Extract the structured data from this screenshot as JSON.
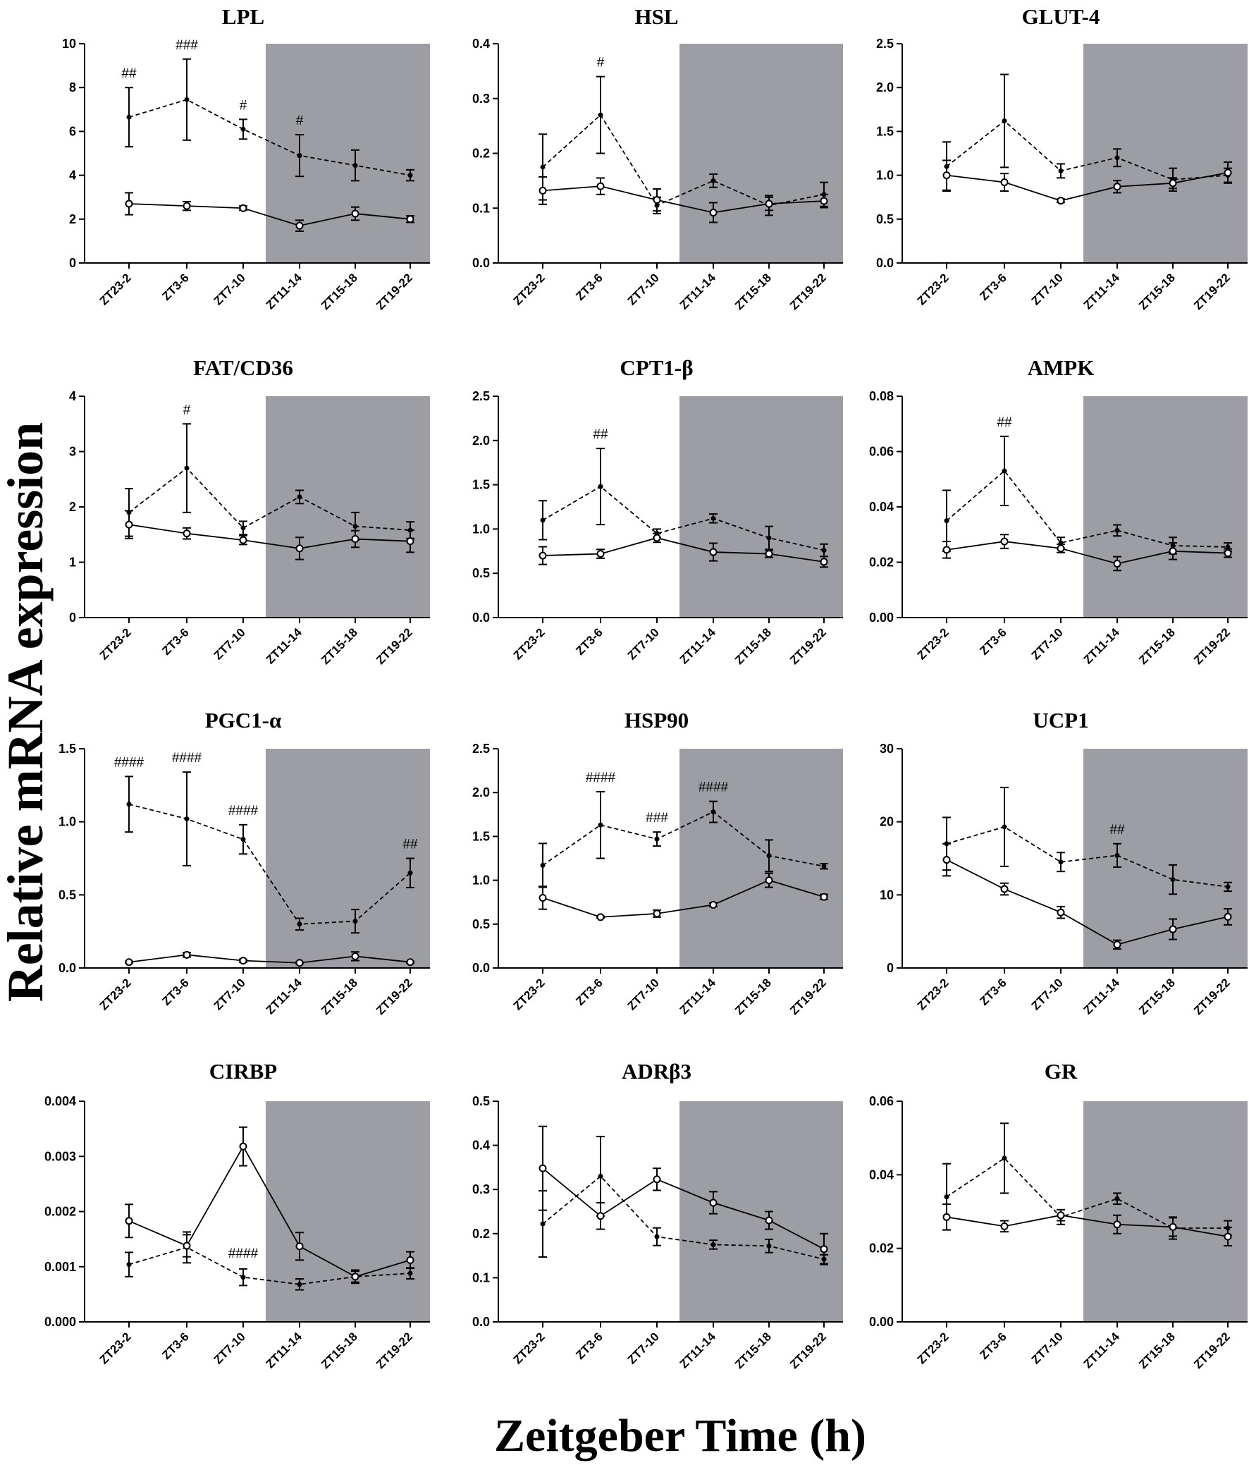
{
  "figure": {
    "ylabel": "Relative mRNA expression",
    "xlabel": "Zeitgeber Time (h)"
  },
  "chart_data": [
    {
      "type": "line",
      "title": "LPL",
      "categories": [
        "ZT23-2",
        "ZT3-6",
        "ZT7-10",
        "ZT11-14",
        "ZT15-18",
        "ZT19-22"
      ],
      "ylim": [
        0,
        10
      ],
      "yticks": [
        "0",
        "2",
        "4",
        "6",
        "8",
        "10"
      ],
      "dark_phase_start": "ZT11-14",
      "series": [
        {
          "name": "dashed (filled markers)",
          "values": [
            6.65,
            7.45,
            6.1,
            4.9,
            4.45,
            4.0
          ],
          "errors": [
            1.35,
            1.85,
            0.45,
            0.95,
            0.7,
            0.25
          ]
        },
        {
          "name": "solid (open markers)",
          "values": [
            2.7,
            2.6,
            2.5,
            1.7,
            2.25,
            2.0
          ],
          "errors": [
            0.5,
            0.2,
            0.1,
            0.25,
            0.3,
            0.15
          ]
        }
      ],
      "annotations": [
        {
          "x": "ZT23-2",
          "text": "##"
        },
        {
          "x": "ZT3-6",
          "text": "###"
        },
        {
          "x": "ZT7-10",
          "text": "#"
        },
        {
          "x": "ZT11-14",
          "text": "#"
        }
      ]
    },
    {
      "type": "line",
      "title": "HSL",
      "categories": [
        "ZT23-2",
        "ZT3-6",
        "ZT7-10",
        "ZT11-14",
        "ZT15-18",
        "ZT19-22"
      ],
      "ylim": [
        0,
        0.4
      ],
      "yticks": [
        "0.0",
        "0.1",
        "0.2",
        "0.3",
        "0.4"
      ],
      "dark_phase_start": "ZT11-14",
      "series": [
        {
          "name": "dashed (filled markers)",
          "values": [
            0.175,
            0.27,
            0.105,
            0.15,
            0.105,
            0.125
          ],
          "errors": [
            0.06,
            0.07,
            0.015,
            0.012,
            0.018,
            0.022
          ]
        },
        {
          "name": "solid (open markers)",
          "values": [
            0.132,
            0.14,
            0.115,
            0.092,
            0.108,
            0.113
          ],
          "errors": [
            0.025,
            0.015,
            0.02,
            0.018,
            0.012,
            0.012
          ]
        }
      ],
      "annotations": [
        {
          "x": "ZT3-6",
          "text": "#"
        }
      ]
    },
    {
      "type": "line",
      "title": "GLUT-4",
      "categories": [
        "ZT23-2",
        "ZT3-6",
        "ZT7-10",
        "ZT11-14",
        "ZT15-18",
        "ZT19-22"
      ],
      "ylim": [
        0,
        2.5
      ],
      "yticks": [
        "0.0",
        "0.5",
        "1.0",
        "1.5",
        "2.0",
        "2.5"
      ],
      "dark_phase_start": "ZT11-14",
      "series": [
        {
          "name": "dashed (filled markers)",
          "values": [
            1.1,
            1.62,
            1.05,
            1.2,
            0.95,
            1.0
          ],
          "errors": [
            0.28,
            0.53,
            0.08,
            0.1,
            0.13,
            0.08
          ]
        },
        {
          "name": "solid (open markers)",
          "values": [
            1.0,
            0.92,
            0.71,
            0.87,
            0.91,
            1.03
          ],
          "errors": [
            0.17,
            0.1,
            0.02,
            0.07,
            0.06,
            0.12
          ]
        }
      ],
      "annotations": []
    },
    {
      "type": "line",
      "title": "FAT/CD36",
      "categories": [
        "ZT23-2",
        "ZT3-6",
        "ZT7-10",
        "ZT11-14",
        "ZT15-18",
        "ZT19-22"
      ],
      "ylim": [
        0,
        4
      ],
      "yticks": [
        "0",
        "1",
        "2",
        "3",
        "4"
      ],
      "dark_phase_start": "ZT11-14",
      "series": [
        {
          "name": "dashed (filled markers)",
          "values": [
            1.9,
            2.7,
            1.62,
            2.18,
            1.65,
            1.58
          ],
          "errors": [
            0.43,
            0.8,
            0.12,
            0.12,
            0.25,
            0.15
          ]
        },
        {
          "name": "solid (open markers)",
          "values": [
            1.68,
            1.52,
            1.4,
            1.25,
            1.42,
            1.38
          ],
          "errors": [
            0.25,
            0.1,
            0.08,
            0.2,
            0.15,
            0.2
          ]
        }
      ],
      "annotations": [
        {
          "x": "ZT3-6",
          "text": "#"
        }
      ]
    },
    {
      "type": "line",
      "title": "CPT1-β",
      "categories": [
        "ZT23-2",
        "ZT3-6",
        "ZT7-10",
        "ZT11-14",
        "ZT15-18",
        "ZT19-22"
      ],
      "ylim": [
        0,
        2.5
      ],
      "yticks": [
        "0.0",
        "0.5",
        "1.0",
        "1.5",
        "2.0",
        "2.5"
      ],
      "dark_phase_start": "ZT11-14",
      "series": [
        {
          "name": "dashed (filled markers)",
          "values": [
            1.1,
            1.48,
            0.95,
            1.12,
            0.9,
            0.76
          ],
          "errors": [
            0.22,
            0.43,
            0.05,
            0.05,
            0.13,
            0.07
          ]
        },
        {
          "name": "solid (open markers)",
          "values": [
            0.7,
            0.72,
            0.9,
            0.74,
            0.72,
            0.63
          ],
          "errors": [
            0.1,
            0.05,
            0.05,
            0.1,
            0.04,
            0.06
          ]
        }
      ],
      "annotations": [
        {
          "x": "ZT3-6",
          "text": "##"
        }
      ]
    },
    {
      "type": "line",
      "title": "AMPK",
      "categories": [
        "ZT23-2",
        "ZT3-6",
        "ZT7-10",
        "ZT11-14",
        "ZT15-18",
        "ZT19-22"
      ],
      "ylim": [
        0,
        0.08
      ],
      "yticks": [
        "0.00",
        "0.02",
        "0.04",
        "0.06",
        "0.08"
      ],
      "dark_phase_start": "ZT11-14",
      "series": [
        {
          "name": "dashed (filled markers)",
          "values": [
            0.035,
            0.053,
            0.027,
            0.0315,
            0.026,
            0.0255
          ],
          "errors": [
            0.011,
            0.0125,
            0.002,
            0.002,
            0.003,
            0.0015
          ]
        },
        {
          "name": "solid (open markers)",
          "values": [
            0.0245,
            0.0275,
            0.025,
            0.0195,
            0.024,
            0.0233
          ],
          "errors": [
            0.003,
            0.0025,
            0.0015,
            0.0025,
            0.003,
            0.0015
          ]
        }
      ],
      "annotations": [
        {
          "x": "ZT3-6",
          "text": "##"
        }
      ]
    },
    {
      "type": "line",
      "title": "PGC1-α",
      "categories": [
        "ZT23-2",
        "ZT3-6",
        "ZT7-10",
        "ZT11-14",
        "ZT15-18",
        "ZT19-22"
      ],
      "ylim": [
        0,
        1.5
      ],
      "yticks": [
        "0.0",
        "0.5",
        "1.0",
        "1.5"
      ],
      "dark_phase_start": "ZT11-14",
      "series": [
        {
          "name": "dashed (filled markers)",
          "values": [
            1.12,
            1.02,
            0.88,
            0.3,
            0.32,
            0.65
          ],
          "errors": [
            0.19,
            0.32,
            0.1,
            0.04,
            0.08,
            0.1
          ]
        },
        {
          "name": "solid (open markers)",
          "values": [
            0.04,
            0.09,
            0.05,
            0.035,
            0.08,
            0.04
          ],
          "errors": [
            0.005,
            0.015,
            0.01,
            0.005,
            0.03,
            0.005
          ]
        }
      ],
      "annotations": [
        {
          "x": "ZT23-2",
          "text": "####"
        },
        {
          "x": "ZT3-6",
          "text": "####"
        },
        {
          "x": "ZT7-10",
          "text": "####"
        },
        {
          "x": "ZT19-22",
          "text": "##"
        }
      ]
    },
    {
      "type": "line",
      "title": "HSP90",
      "categories": [
        "ZT23-2",
        "ZT3-6",
        "ZT7-10",
        "ZT11-14",
        "ZT15-18",
        "ZT19-22"
      ],
      "ylim": [
        0,
        2.5
      ],
      "yticks": [
        "0.0",
        "0.5",
        "1.0",
        "1.5",
        "2.0",
        "2.5"
      ],
      "dark_phase_start": "ZT11-14",
      "series": [
        {
          "name": "dashed (filled markers)",
          "values": [
            1.17,
            1.63,
            1.47,
            1.78,
            1.28,
            1.16
          ],
          "errors": [
            0.25,
            0.38,
            0.08,
            0.12,
            0.18,
            0.03
          ]
        },
        {
          "name": "solid (open markers)",
          "values": [
            0.8,
            0.58,
            0.62,
            0.72,
            1.0,
            0.81
          ],
          "errors": [
            0.13,
            0.01,
            0.04,
            0.02,
            0.08,
            0.03
          ]
        }
      ],
      "annotations": [
        {
          "x": "ZT3-6",
          "text": "####"
        },
        {
          "x": "ZT7-10",
          "text": "###"
        },
        {
          "x": "ZT11-14",
          "text": "####"
        }
      ]
    },
    {
      "type": "line",
      "title": "UCP1",
      "categories": [
        "ZT23-2",
        "ZT3-6",
        "ZT7-10",
        "ZT11-14",
        "ZT15-18",
        "ZT19-22"
      ],
      "ylim": [
        0,
        30
      ],
      "yticks": [
        "0",
        "10",
        "20",
        "30"
      ],
      "dark_phase_start": "ZT11-14",
      "series": [
        {
          "name": "dashed (filled markers)",
          "values": [
            17.0,
            19.3,
            14.5,
            15.4,
            12.1,
            11.1
          ],
          "errors": [
            3.6,
            5.4,
            1.3,
            1.6,
            2.0,
            0.6
          ]
        },
        {
          "name": "solid (open markers)",
          "values": [
            14.8,
            10.8,
            7.6,
            3.2,
            5.3,
            7.0
          ],
          "errors": [
            2.2,
            0.8,
            0.8,
            0.6,
            1.4,
            1.1
          ]
        }
      ],
      "annotations": [
        {
          "x": "ZT11-14",
          "text": "##"
        }
      ]
    },
    {
      "type": "line",
      "title": "CIRBP",
      "categories": [
        "ZT23-2",
        "ZT3-6",
        "ZT7-10",
        "ZT11-14",
        "ZT15-18",
        "ZT19-22"
      ],
      "ylim": [
        0,
        0.004
      ],
      "yticks": [
        "0.000",
        "0.001",
        "0.002",
        "0.003",
        "0.004"
      ],
      "dark_phase_start": "ZT11-14",
      "series": [
        {
          "name": "dashed (filled markers)",
          "values": [
            0.00104,
            0.00135,
            0.00081,
            0.00068,
            0.00082,
            0.00088
          ],
          "errors": [
            0.00022,
            0.00028,
            0.00015,
            0.0001,
            0.0001,
            0.0001
          ]
        },
        {
          "name": "solid (open markers)",
          "values": [
            0.00183,
            0.00138,
            0.00318,
            0.00137,
            0.00082,
            0.00112
          ],
          "errors": [
            0.0003,
            0.0002,
            0.00035,
            0.00025,
            0.00012,
            0.00015
          ]
        }
      ],
      "annotations": [
        {
          "x": "ZT7-10",
          "text": "####"
        }
      ]
    },
    {
      "type": "line",
      "title": "ADRβ3",
      "categories": [
        "ZT23-2",
        "ZT3-6",
        "ZT7-10",
        "ZT11-14",
        "ZT15-18",
        "ZT19-22"
      ],
      "ylim": [
        0,
        0.5
      ],
      "yticks": [
        "0.0",
        "0.1",
        "0.2",
        "0.3",
        "0.4",
        "0.5"
      ],
      "dark_phase_start": "ZT11-14",
      "series": [
        {
          "name": "dashed (filled markers)",
          "values": [
            0.222,
            0.33,
            0.193,
            0.175,
            0.172,
            0.142
          ],
          "errors": [
            0.075,
            0.09,
            0.02,
            0.01,
            0.015,
            0.01
          ]
        },
        {
          "name": "solid (open markers)",
          "values": [
            0.348,
            0.24,
            0.323,
            0.27,
            0.23,
            0.165
          ],
          "errors": [
            0.095,
            0.03,
            0.025,
            0.025,
            0.02,
            0.035
          ]
        }
      ],
      "annotations": []
    },
    {
      "type": "line",
      "title": "GR",
      "categories": [
        "ZT23-2",
        "ZT3-6",
        "ZT7-10",
        "ZT11-14",
        "ZT15-18",
        "ZT19-22"
      ],
      "ylim": [
        0,
        0.06
      ],
      "yticks": [
        "0.00",
        "0.02",
        "0.04",
        "0.06"
      ],
      "dark_phase_start": "ZT11-14",
      "series": [
        {
          "name": "dashed (filled markers)",
          "values": [
            0.034,
            0.0445,
            0.0285,
            0.0335,
            0.0255,
            0.0255
          ],
          "errors": [
            0.009,
            0.0095,
            0.002,
            0.0015,
            0.003,
            0.002
          ]
        },
        {
          "name": "solid (open markers)",
          "values": [
            0.0285,
            0.026,
            0.029,
            0.0265,
            0.0258,
            0.0232
          ],
          "errors": [
            0.0035,
            0.0015,
            0.0015,
            0.0025,
            0.0025,
            0.0025
          ]
        }
      ],
      "annotations": []
    }
  ]
}
